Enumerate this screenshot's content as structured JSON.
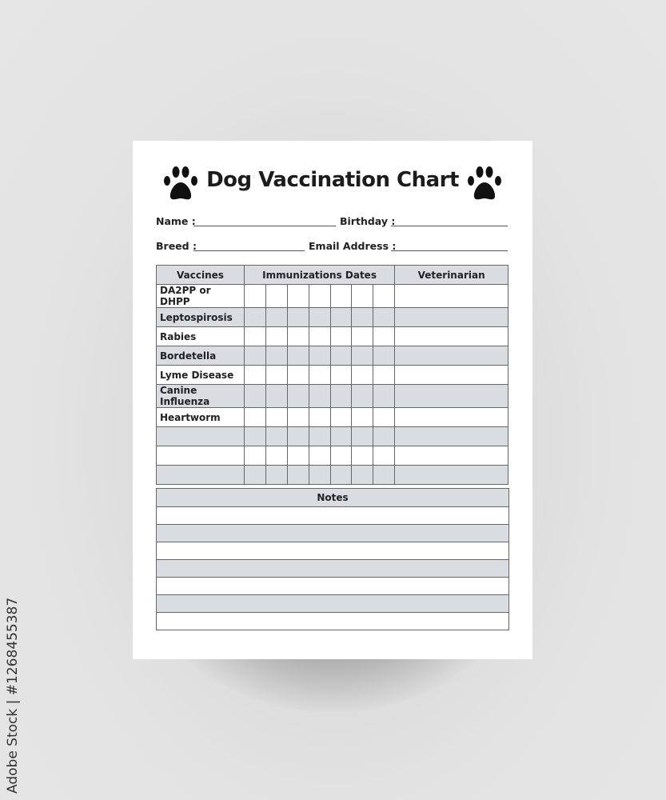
{
  "document": {
    "title": "Dog Vaccination Chart",
    "icons": [
      "paw-icon",
      "paw-icon"
    ],
    "fields": {
      "name": "Name :",
      "birthday": "Birthday :",
      "breed": "Breed :",
      "email": "Email Address :"
    },
    "table": {
      "headers": [
        "Vaccines",
        "Immunizations Dates",
        "Veterinarian"
      ],
      "date_columns": 7,
      "rows": [
        "DA2PP or DHPP",
        "Leptospirosis",
        "Rabies",
        "Bordetella",
        "Lyme Disease",
        "Canine Influenza",
        "Heartworm",
        "",
        "",
        ""
      ]
    },
    "notes": {
      "header": "Notes",
      "rows": 7
    },
    "colors": {
      "header_fill": "#d9dde2",
      "text": "#222222"
    }
  },
  "watermark": "Adobe Stock | #1268455387"
}
